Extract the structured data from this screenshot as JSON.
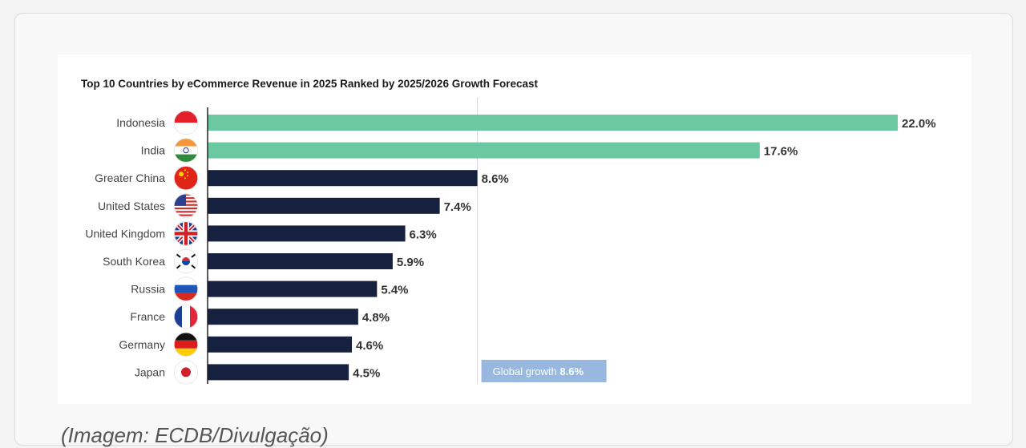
{
  "caption": "(Imagem: ECDB/Divulgação)",
  "chart_data": {
    "type": "bar",
    "orientation": "horizontal",
    "title": "Top 10 Countries by eCommerce Revenue in 2025 Ranked by 2025/2026 Growth Forecast",
    "categories": [
      "Indonesia",
      "India",
      "Greater China",
      "United States",
      "United Kingdom",
      "South Korea",
      "Russia",
      "France",
      "Germany",
      "Japan"
    ],
    "values": [
      22.0,
      17.6,
      8.6,
      7.4,
      6.3,
      5.9,
      5.4,
      4.8,
      4.6,
      4.5
    ],
    "value_labels": [
      "22.0%",
      "17.6%",
      "8.6%",
      "7.4%",
      "6.3%",
      "5.9%",
      "5.4%",
      "4.8%",
      "4.6%",
      "4.5%"
    ],
    "flags": [
      "indonesia-flag-icon",
      "india-flag-icon",
      "china-flag-icon",
      "usa-flag-icon",
      "uk-flag-icon",
      "south-korea-flag-icon",
      "russia-flag-icon",
      "france-flag-icon",
      "germany-flag-icon",
      "japan-flag-icon"
    ],
    "xlim": [
      0,
      22.0
    ],
    "grid": false,
    "colors": {
      "above_average": "#6cc8a1",
      "below_average": "#16213f",
      "reference_line": "#c9dbe8",
      "reference_label_bg": "#99b8e0"
    },
    "reference": {
      "value": 8.6,
      "label_text": "Global growth ",
      "label_value": "8.6%"
    }
  }
}
